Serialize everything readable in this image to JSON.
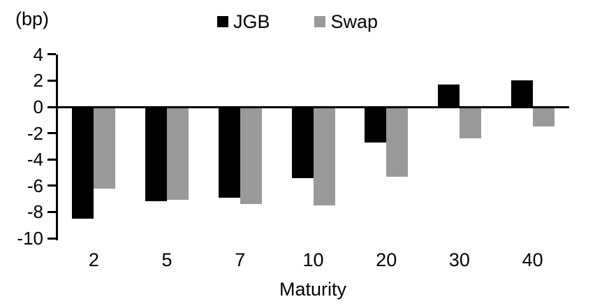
{
  "chart_data": {
    "type": "bar",
    "unit_label": "(bp)",
    "xlabel": "Maturity",
    "categories": [
      "2",
      "5",
      "7",
      "10",
      "20",
      "30",
      "40"
    ],
    "series": [
      {
        "name": "JGB",
        "color": "#000000",
        "values": [
          -8.5,
          -7.2,
          -6.9,
          -5.4,
          -2.7,
          1.7,
          2.0
        ]
      },
      {
        "name": "Swap",
        "color": "#999999",
        "values": [
          -6.2,
          -7.1,
          -7.4,
          -7.5,
          -5.3,
          -2.4,
          -1.5
        ]
      }
    ],
    "yticks": [
      4,
      2,
      0,
      -2,
      -4,
      -6,
      -8,
      -10
    ],
    "ylim": [
      -10,
      4
    ],
    "grid": false,
    "legend_position": "top"
  }
}
